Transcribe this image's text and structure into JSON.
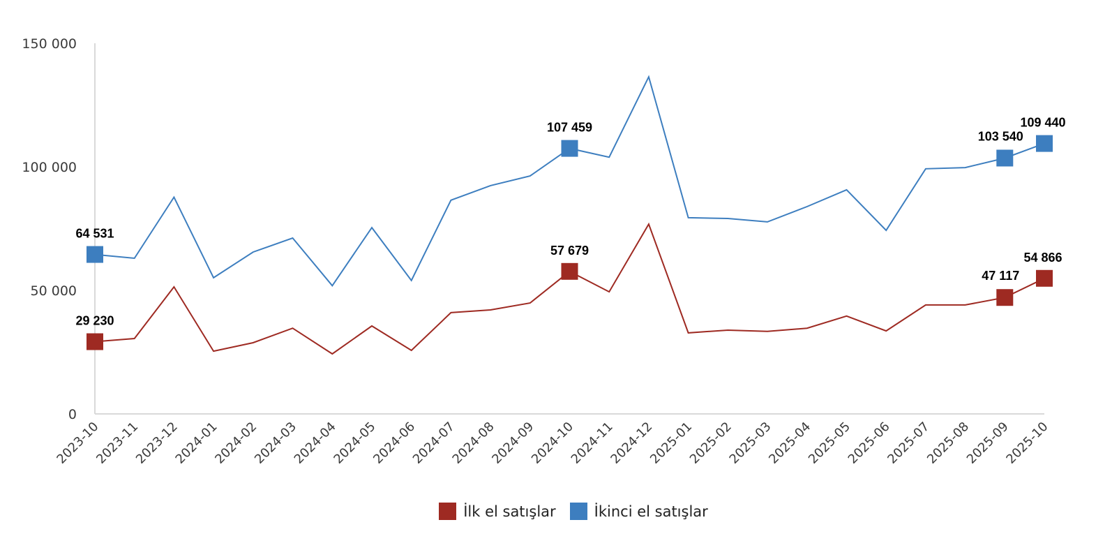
{
  "chart_data": {
    "type": "line",
    "title": "",
    "xlabel": "",
    "ylabel": "",
    "ylim": [
      0,
      150000
    ],
    "yticks": [
      0,
      50000,
      100000,
      150000
    ],
    "ytick_labels": [
      "0",
      "50 000",
      "100 000",
      "150 000"
    ],
    "grid": false,
    "legend_position": "bottom",
    "categories": [
      "2023-10",
      "2023-11",
      "2023-12",
      "2024-01",
      "2024-02",
      "2024-03",
      "2024-04",
      "2024-05",
      "2024-06",
      "2024-07",
      "2024-08",
      "2024-09",
      "2024-10",
      "2024-11",
      "2024-12",
      "2025-01",
      "2025-02",
      "2025-03",
      "2025-04",
      "2025-05",
      "2025-06",
      "2025-07",
      "2025-08",
      "2025-09",
      "2025-10"
    ],
    "series": [
      {
        "name": "İlk el satışlar",
        "color": "#9e2a22",
        "values": [
          29230,
          30500,
          51400,
          25400,
          28800,
          34700,
          24300,
          35600,
          25700,
          41000,
          42100,
          44900,
          57679,
          49400,
          76800,
          32800,
          33900,
          33400,
          34700,
          39600,
          33600,
          44100,
          44100,
          47117,
          54866
        ],
        "labeled_points": [
          {
            "index": 0,
            "label": "29 230"
          },
          {
            "index": 12,
            "label": "57 679"
          },
          {
            "index": 23,
            "label": "47 117"
          },
          {
            "index": 24,
            "label": "54 866"
          }
        ]
      },
      {
        "name": "İkinci el satışlar",
        "color": "#3d7ebf",
        "values": [
          64531,
          63000,
          87700,
          55100,
          65500,
          71200,
          51900,
          75400,
          54000,
          86500,
          92400,
          96300,
          107459,
          103900,
          136400,
          79400,
          79100,
          77700,
          83900,
          90700,
          74300,
          99200,
          99700,
          103540,
          109440
        ],
        "labeled_points": [
          {
            "index": 0,
            "label": "64 531"
          },
          {
            "index": 12,
            "label": "107 459"
          },
          {
            "index": 23,
            "label": "103 540"
          },
          {
            "index": 24,
            "label": "109 440"
          }
        ]
      }
    ]
  },
  "legend": {
    "items": [
      {
        "label": "İlk el satışlar",
        "color": "#9e2a22"
      },
      {
        "label": "İkinci el satışlar",
        "color": "#3d7ebf"
      }
    ]
  }
}
